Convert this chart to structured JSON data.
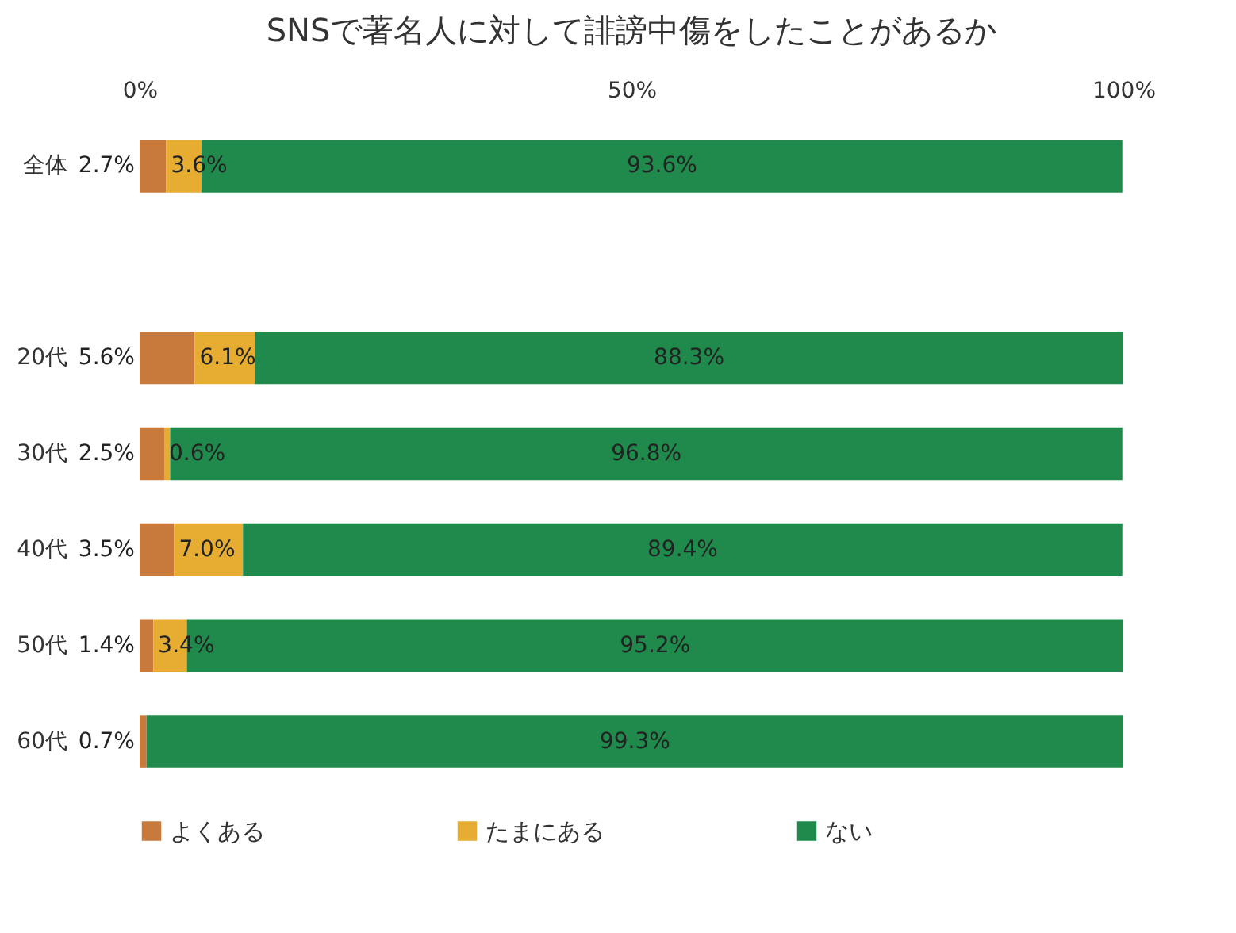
{
  "chart_data": {
    "type": "bar",
    "orientation": "horizontal",
    "stacked": true,
    "title": "SNSで著名人に対して誹謗中傷をしたことがあるか",
    "categories": [
      "全体",
      null,
      "20代",
      "30代",
      "40代",
      "50代",
      "60代"
    ],
    "series": [
      {
        "name": "よくある",
        "color": "#c87a3c",
        "values": [
          2.7,
          null,
          5.6,
          2.5,
          3.5,
          1.4,
          0.7
        ],
        "value_labels": [
          "2.7%",
          null,
          "5.6%",
          "2.5%",
          "3.5%",
          "1.4%",
          "0.7%"
        ]
      },
      {
        "name": "たまにある",
        "color": "#e6ad32",
        "values": [
          3.6,
          null,
          6.1,
          0.6,
          7.0,
          3.4,
          0
        ],
        "value_labels": [
          "3.6%",
          null,
          "6.1%",
          "0.6%",
          "7.0%",
          "3.4%",
          null
        ]
      },
      {
        "name": "ない",
        "color": "#1f8a4c",
        "values": [
          93.6,
          null,
          88.3,
          96.8,
          89.4,
          95.2,
          99.3
        ],
        "value_labels": [
          "93.6%",
          null,
          "88.3%",
          "96.8%",
          "89.4%",
          "95.2%",
          "99.3%"
        ]
      }
    ],
    "xlim": [
      0,
      100
    ],
    "xticks": [
      {
        "value": 0,
        "label": "0%"
      },
      {
        "value": 50,
        "label": "50%"
      },
      {
        "value": 100,
        "label": "100%"
      }
    ],
    "grid": false,
    "legend": "bottom"
  }
}
